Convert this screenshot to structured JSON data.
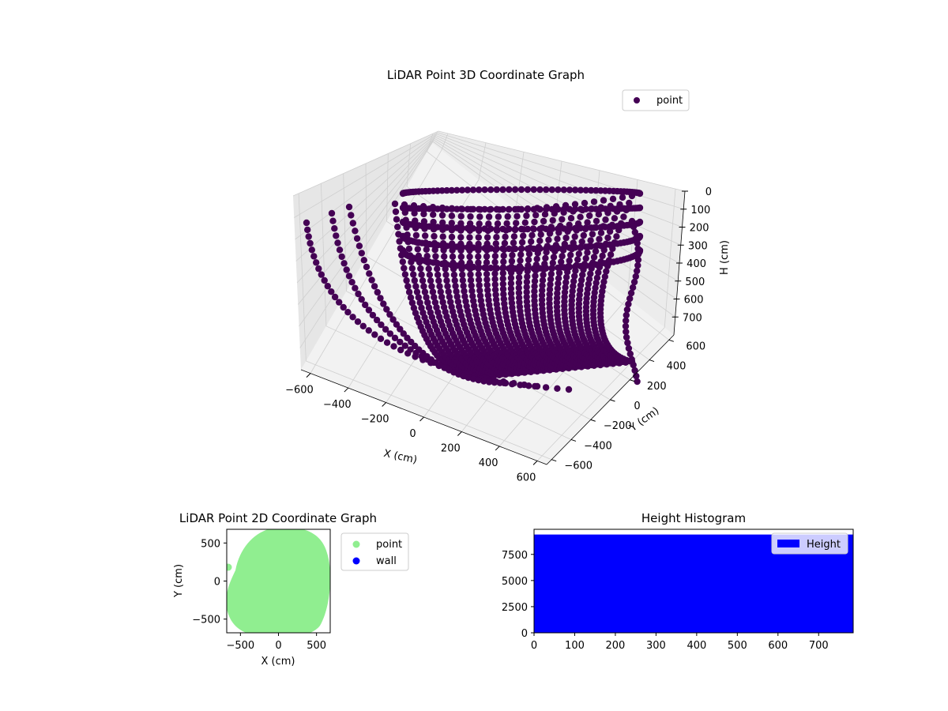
{
  "chart_data": [
    {
      "type": "scatter3d",
      "title": "LiDAR Point 3D Coordinate Graph",
      "xlabel": "X (cm)",
      "ylabel": "Y (cm)",
      "zlabel": "H (cm)",
      "xticks": [
        "−600",
        "−400",
        "−200",
        "0",
        "200",
        "400",
        "600"
      ],
      "yticks": [
        "−600",
        "−400",
        "−200",
        "0",
        "200",
        "400",
        "600"
      ],
      "zticks": [
        "0",
        "100",
        "200",
        "300",
        "400",
        "500",
        "600",
        "700"
      ],
      "xlim": [
        -650,
        650
      ],
      "ylim": [
        -650,
        650
      ],
      "zlim": [
        800,
        0
      ],
      "z_inverted": true,
      "series": [
        {
          "name": "point",
          "color": "#440154"
        }
      ],
      "legend_position": "top-right",
      "grid": true
    },
    {
      "type": "scatter",
      "title": "LiDAR Point 2D Coordinate Graph",
      "xlabel": "X (cm)",
      "ylabel": "Y (cm)",
      "xticks": [
        "−500",
        "0",
        "500"
      ],
      "yticks": [
        "−500",
        "0",
        "500"
      ],
      "xlim": [
        -680,
        680
      ],
      "ylim": [
        -680,
        680
      ],
      "series": [
        {
          "name": "point",
          "color": "#90ee90"
        },
        {
          "name": "wall",
          "color": "#0000ff"
        }
      ],
      "legend_position": "outside right"
    },
    {
      "type": "bar",
      "title": "Height Histogram",
      "xticks": [
        "0",
        "100",
        "200",
        "300",
        "400",
        "500",
        "600",
        "700"
      ],
      "yticks": [
        "0",
        "2500",
        "5000",
        "7500"
      ],
      "xlim": [
        0,
        785
      ],
      "ylim": [
        0,
        9900
      ],
      "bin_range": [
        0,
        785
      ],
      "bar_value": 9400,
      "series": [
        {
          "name": "Height",
          "color": "#0000ff"
        }
      ],
      "legend_position": "top-right"
    }
  ]
}
